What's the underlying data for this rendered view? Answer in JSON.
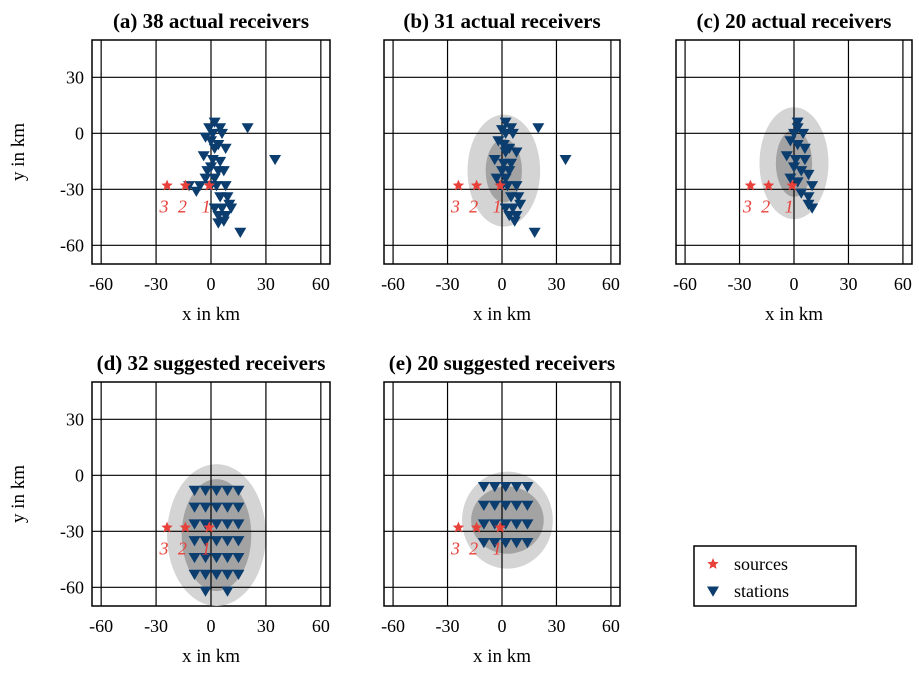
{
  "figure": {
    "legend": {
      "items": [
        "sources",
        "stations"
      ]
    }
  },
  "colors": {
    "source": "#e8403a",
    "station": "#0b3d6e",
    "ellipse_outer": "#d4d4d4",
    "ellipse_inner": "#a3a3a3",
    "grid": "#000000"
  },
  "chart_data": [
    {
      "type": "scatter",
      "title": "(a) 38 actual receivers",
      "xlabel": "x in km",
      "ylabel": "y in km",
      "xticks": [
        -60,
        -30,
        0,
        30,
        60
      ],
      "yticks": [
        30,
        0,
        -30,
        -60
      ],
      "xlim": [
        -65,
        65
      ],
      "ylim": [
        -70,
        50
      ],
      "grid": true,
      "ellipses": [],
      "sources": {
        "x": [
          -24,
          -14,
          -1
        ],
        "y": [
          -28,
          -28,
          -28
        ],
        "labels": [
          "3",
          "2",
          "1"
        ]
      },
      "stations": {
        "x": [
          2,
          5,
          -1,
          1,
          6,
          -3,
          0,
          4,
          20,
          2,
          8,
          -4,
          1,
          5,
          0,
          -2,
          4,
          7,
          -3,
          2,
          35,
          0,
          -6,
          3,
          8,
          -8,
          -12,
          5,
          9,
          10,
          2,
          6,
          11,
          4,
          8,
          7,
          4,
          16
        ],
        "y": [
          6,
          3,
          3,
          0,
          0,
          -2,
          -4,
          -6,
          3,
          -8,
          -8,
          -12,
          -14,
          -15,
          -18,
          -20,
          -20,
          -20,
          -24,
          -24,
          -14,
          -28,
          -28,
          -28,
          -28,
          -31,
          -28,
          -34,
          -34,
          -38,
          -40,
          -40,
          -40,
          -44,
          -44,
          -47,
          -48,
          -53
        ]
      }
    },
    {
      "type": "scatter",
      "title": "(b) 31 actual receivers",
      "xlabel": "x in km",
      "xticks": [
        -60,
        -30,
        0,
        30,
        60
      ],
      "xlim": [
        -65,
        65
      ],
      "ylim": [
        -70,
        50
      ],
      "grid": true,
      "ellipses": [
        {
          "cx": 1,
          "cy": -20,
          "rx": 20,
          "ry": 30,
          "level": "outer"
        },
        {
          "cx": 1,
          "cy": -20,
          "rx": 10,
          "ry": 17,
          "level": "inner"
        }
      ],
      "sources": {
        "x": [
          -24,
          -14,
          -1
        ],
        "y": [
          -28,
          -28,
          -28
        ],
        "labels": [
          "3",
          "2",
          "1"
        ]
      },
      "stations": {
        "x": [
          2,
          5,
          0,
          2,
          6,
          -2,
          1,
          4,
          20,
          2,
          8,
          -4,
          1,
          5,
          0,
          4,
          -3,
          2,
          35,
          0,
          3,
          8,
          5,
          9,
          10,
          2,
          6,
          4,
          8,
          7,
          18
        ],
        "y": [
          6,
          3,
          2,
          0,
          0,
          -4,
          -6,
          -8,
          3,
          -10,
          -10,
          -14,
          -16,
          -16,
          -20,
          -20,
          -24,
          -24,
          -14,
          -28,
          -28,
          -28,
          -34,
          -34,
          -38,
          -40,
          -40,
          -44,
          -44,
          -47,
          -53
        ]
      }
    },
    {
      "type": "scatter",
      "title": "(c) 20 actual receivers",
      "xlabel": "x in km",
      "xticks": [
        -60,
        -30,
        0,
        30,
        60
      ],
      "xlim": [
        -65,
        65
      ],
      "ylim": [
        -70,
        50
      ],
      "grid": true,
      "ellipses": [
        {
          "cx": 0,
          "cy": -16,
          "rx": 19,
          "ry": 30,
          "level": "outer"
        },
        {
          "cx": 0,
          "cy": -16,
          "rx": 10,
          "ry": 18,
          "level": "inner"
        }
      ],
      "sources": {
        "x": [
          -24,
          -14,
          -1
        ],
        "y": [
          -28,
          -28,
          -28
        ],
        "labels": [
          "3",
          "2",
          "1"
        ]
      },
      "stations": {
        "x": [
          2,
          2,
          0,
          5,
          -2,
          2,
          6,
          -4,
          1,
          6,
          0,
          4,
          8,
          -2,
          2,
          10,
          4,
          8,
          8,
          10
        ],
        "y": [
          6,
          3,
          0,
          0,
          -4,
          -6,
          -8,
          -12,
          -14,
          -14,
          -18,
          -20,
          -22,
          -24,
          -26,
          -28,
          -32,
          -34,
          -38,
          -40
        ]
      }
    },
    {
      "type": "scatter",
      "title": "(d) 32 suggested receivers",
      "xlabel": "x in km",
      "ylabel": "y in km",
      "xticks": [
        -60,
        -30,
        0,
        30,
        60
      ],
      "yticks": [
        30,
        0,
        -30,
        -60
      ],
      "xlim": [
        -65,
        65
      ],
      "ylim": [
        -70,
        50
      ],
      "grid": true,
      "ellipses": [
        {
          "cx": 3,
          "cy": -32,
          "rx": 27,
          "ry": 38,
          "level": "outer"
        },
        {
          "cx": 3,
          "cy": -32,
          "rx": 19,
          "ry": 30,
          "level": "inner"
        }
      ],
      "sources": {
        "x": [
          -24,
          -14,
          -1
        ],
        "y": [
          -28,
          -28,
          -28
        ],
        "labels": [
          "3",
          "2",
          "1"
        ]
      },
      "stations": {
        "x": [
          -9,
          -3,
          3,
          9,
          15,
          -9,
          -3,
          3,
          9,
          15,
          -9,
          -3,
          3,
          9,
          15,
          -9,
          -3,
          3,
          9,
          15,
          -9,
          -3,
          3,
          9,
          15,
          -9,
          -3,
          3,
          9,
          15,
          -3,
          9
        ],
        "y": [
          -8,
          -8,
          -8,
          -8,
          -8,
          -17,
          -17,
          -17,
          -17,
          -17,
          -26,
          -26,
          -26,
          -26,
          -26,
          -35,
          -35,
          -35,
          -35,
          -35,
          -44,
          -44,
          -44,
          -44,
          -44,
          -53,
          -53,
          -53,
          -53,
          -53,
          -62,
          -62
        ]
      }
    },
    {
      "type": "scatter",
      "title": "(e) 20 suggested receivers",
      "xlabel": "x in km",
      "xticks": [
        -60,
        -30,
        0,
        30,
        60
      ],
      "xlim": [
        -65,
        65
      ],
      "ylim": [
        -70,
        50
      ],
      "grid": true,
      "ellipses": [
        {
          "cx": 3,
          "cy": -24,
          "rx": 25,
          "ry": 26,
          "level": "outer"
        },
        {
          "cx": 3,
          "cy": -24,
          "rx": 20,
          "ry": 18,
          "level": "inner"
        }
      ],
      "sources": {
        "x": [
          -24,
          -14,
          -1
        ],
        "y": [
          -28,
          -28,
          -28
        ],
        "labels": [
          "3",
          "2",
          "1"
        ]
      },
      "stations": {
        "x": [
          -10,
          -4,
          2,
          8,
          14,
          -10,
          -4,
          2,
          8,
          14,
          -10,
          -4,
          2,
          8,
          14,
          -10,
          -4,
          2,
          8,
          14
        ],
        "y": [
          -6,
          -6,
          -6,
          -6,
          -6,
          -16,
          -16,
          -16,
          -16,
          -16,
          -26,
          -26,
          -26,
          -26,
          -26,
          -36,
          -36,
          -36,
          -36,
          -36
        ]
      }
    }
  ]
}
